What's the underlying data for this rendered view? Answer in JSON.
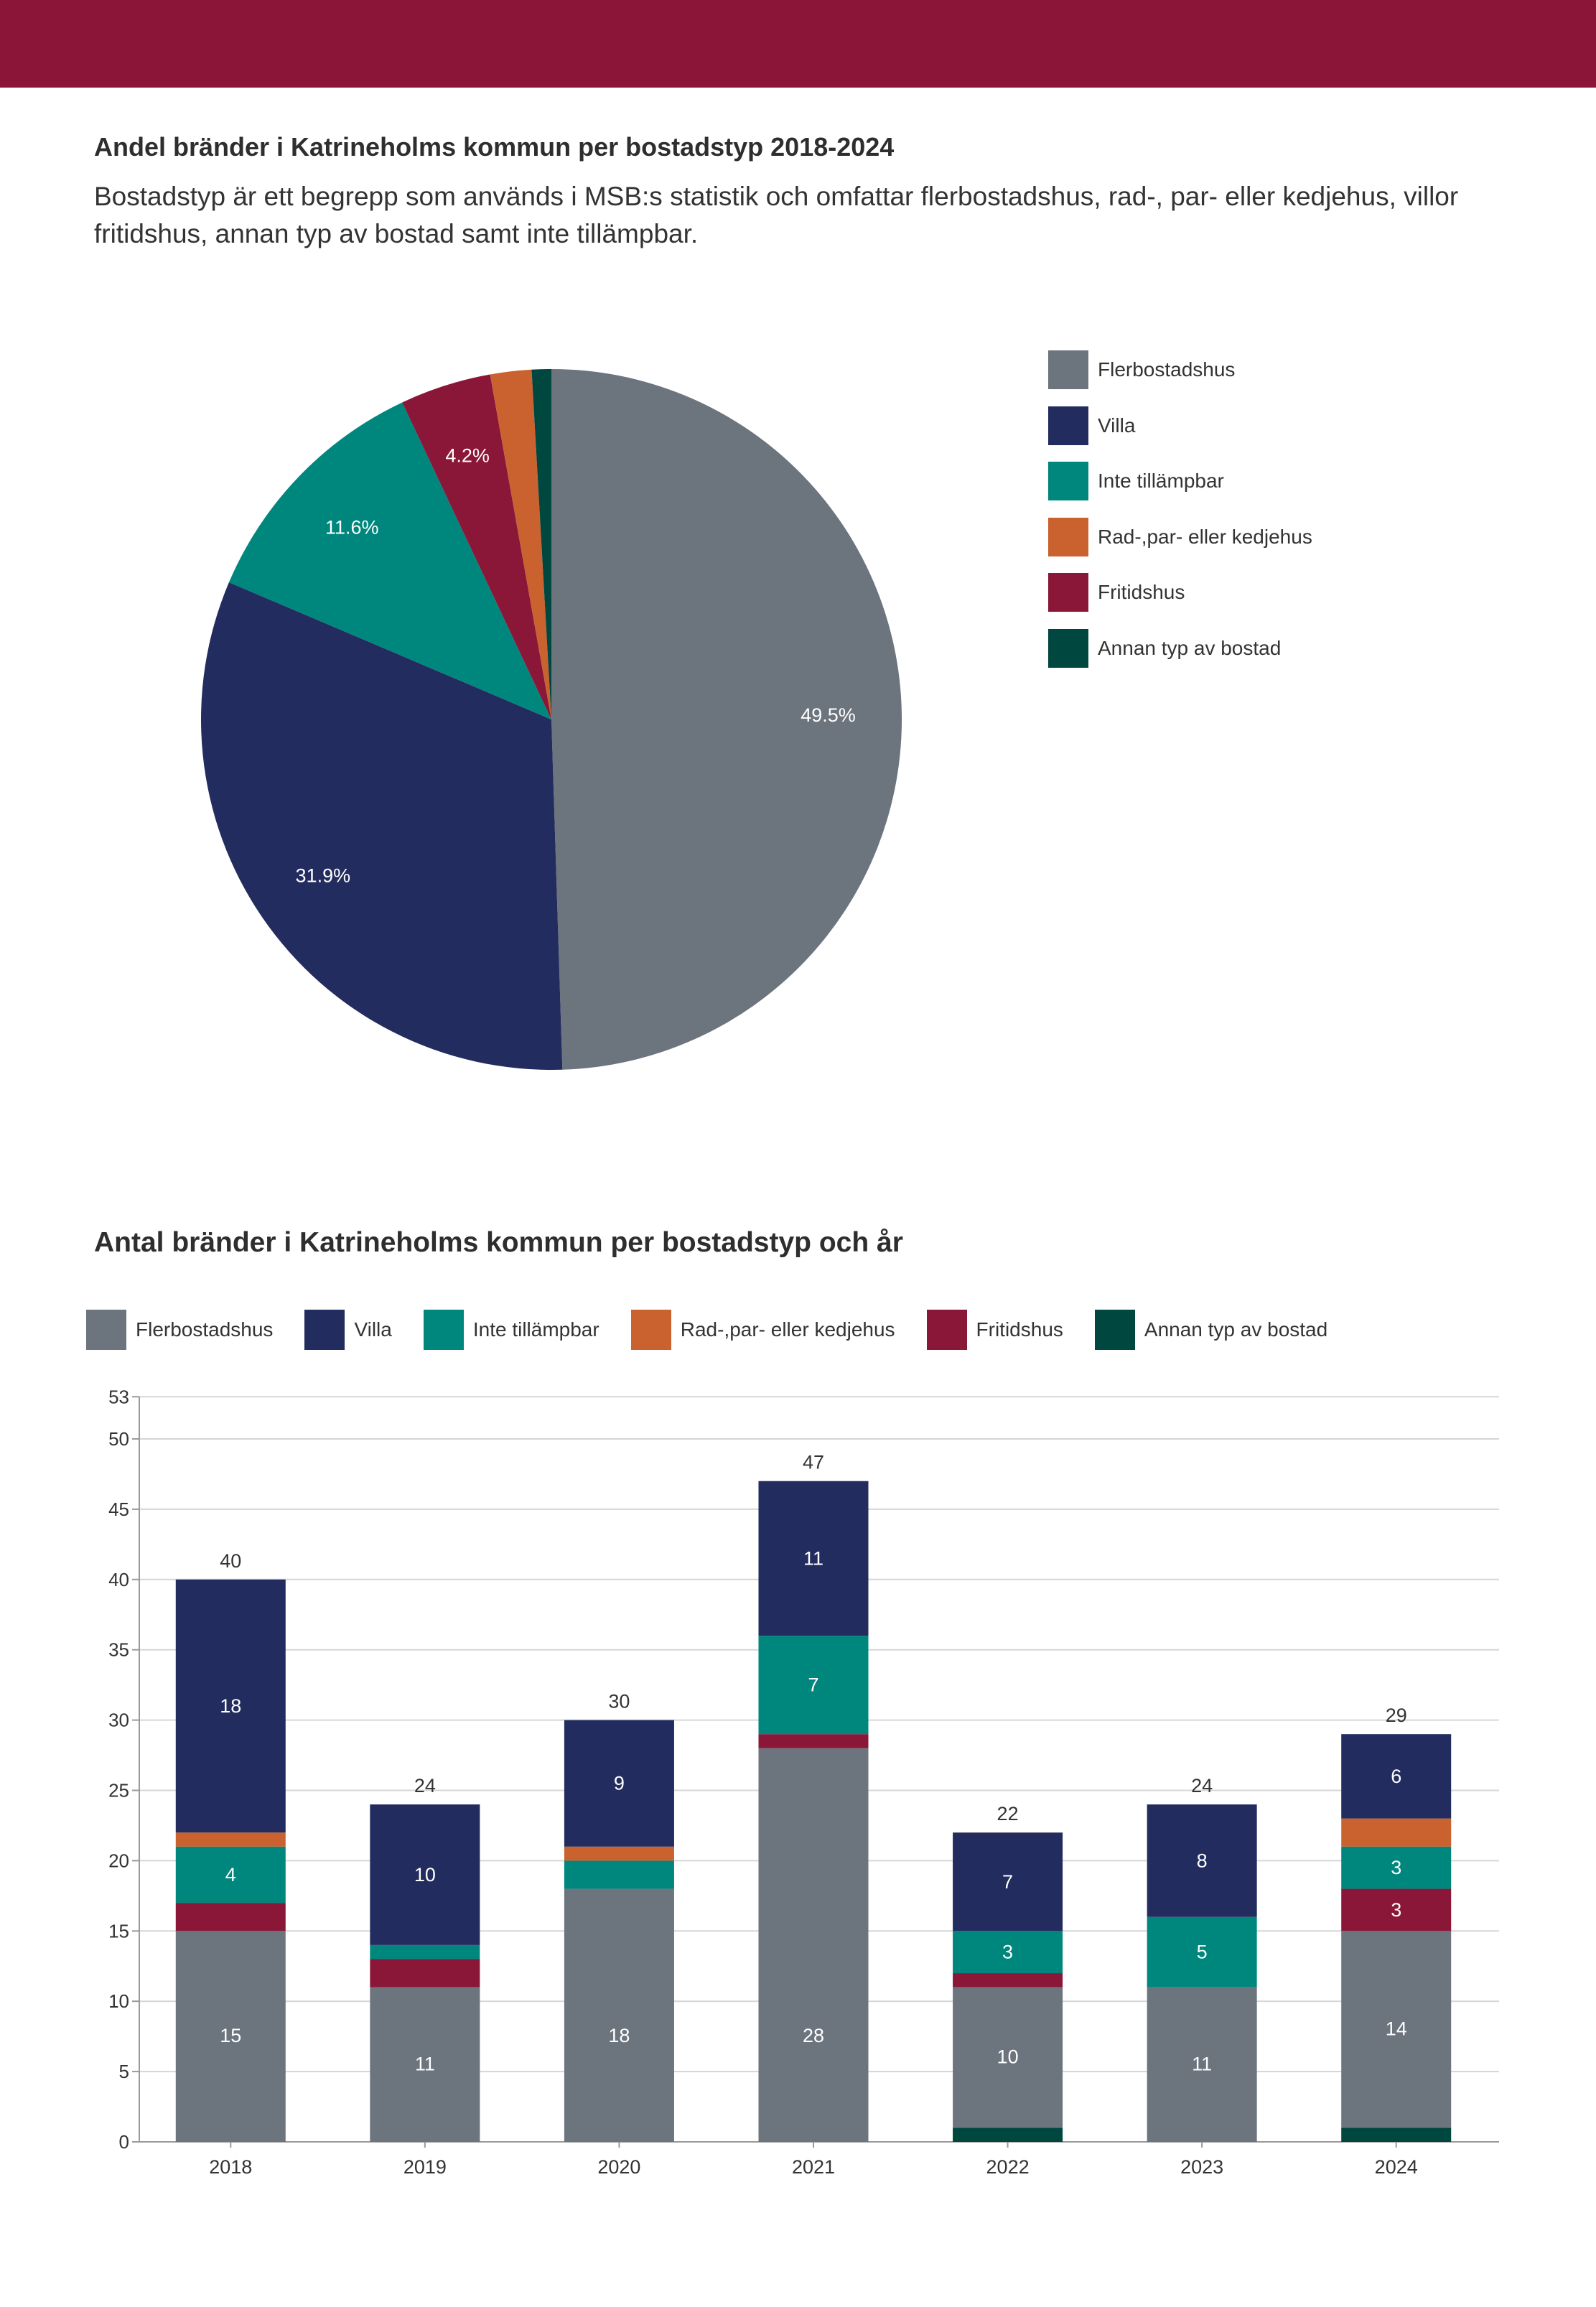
{
  "colors": {
    "band": "#8B1538",
    "Flerbostadshus": "#6C747E",
    "Villa": "#232C5E",
    "Inte tillämpbar": "#00877D",
    "Rad-,par- eller kedjehus": "#C9622F",
    "Fritidshus": "#8A1638",
    "Annan typ av bostad": "#00473F"
  },
  "page": {
    "pie_title": "Andel bränder i Katrineholms kommun per bostadstyp 2018-2024",
    "pie_description": "Bostadstyp är ett begrepp som används i MSB:s statistik och omfattar flerbostadshus, rad-, par- eller kedjehus, villor fritidshus, annan typ av bostad samt inte tillämpbar.",
    "bar_title": "Antal bränder i Katrineholms kommun per bostadstyp och år"
  },
  "chart_data": [
    {
      "type": "pie",
      "title": "Andel bränder i Katrineholms kommun per bostadstyp 2018-2024",
      "labels": [
        "Flerbostadshus",
        "Villa",
        "Inte tillämpbar",
        "Fritidshus",
        "Rad-,par- eller kedjehus",
        "Annan typ av bostad"
      ],
      "values": [
        49.5,
        31.9,
        11.6,
        4.2,
        1.9,
        0.9
      ],
      "value_labels": [
        "49.5%",
        "31.9%",
        "11.6%",
        "4.2%",
        "",
        ""
      ],
      "legend": [
        "Flerbostadshus",
        "Villa",
        "Inte tillämpbar",
        "Rad-,par- eller kedjehus",
        "Fritidshus",
        "Annan typ av bostad"
      ],
      "legend_position": "right"
    },
    {
      "type": "bar",
      "stacked": true,
      "title": "Antal bränder i Katrineholms kommun per bostadstyp och år",
      "categories": [
        "2018",
        "2019",
        "2020",
        "2021",
        "2022",
        "2023",
        "2024"
      ],
      "series": [
        {
          "name": "Annan typ av bostad",
          "values": [
            0,
            0,
            0,
            0,
            1,
            0,
            1
          ]
        },
        {
          "name": "Flerbostadshus",
          "values": [
            15,
            11,
            18,
            28,
            10,
            11,
            14
          ]
        },
        {
          "name": "Fritidshus",
          "values": [
            2,
            2,
            0,
            1,
            1,
            0,
            3
          ]
        },
        {
          "name": "Inte tillämpbar",
          "values": [
            4,
            1,
            2,
            7,
            3,
            5,
            3
          ]
        },
        {
          "name": "Rad-,par- eller kedjehus",
          "values": [
            1,
            0,
            1,
            0,
            0,
            0,
            2
          ]
        },
        {
          "name": "Villa",
          "values": [
            18,
            10,
            9,
            11,
            7,
            8,
            6
          ]
        }
      ],
      "segment_labels": {
        "Flerbostadshus": [
          "15",
          "11",
          "18",
          "28",
          "10",
          "11",
          "14"
        ],
        "Villa": [
          "18",
          "10",
          "9",
          "11",
          "7",
          "8",
          "6"
        ],
        "Inte tillämpbar": [
          "4",
          "",
          "",
          "7",
          "3",
          "5",
          "3"
        ],
        "Fritidshus": [
          "",
          "",
          "",
          "",
          "",
          "",
          "3"
        ]
      },
      "totals": [
        "40",
        "24",
        "30",
        "47",
        "22",
        "24",
        "29"
      ],
      "yticks": [
        0,
        5,
        10,
        15,
        20,
        25,
        30,
        35,
        40,
        45,
        50,
        53
      ],
      "ylim": [
        0,
        53
      ],
      "grid": true,
      "legend": [
        "Flerbostadshus",
        "Villa",
        "Inte tillämpbar",
        "Rad-,par- eller kedjehus",
        "Fritidshus",
        "Annan typ av bostad"
      ],
      "legend_position": "top"
    }
  ]
}
